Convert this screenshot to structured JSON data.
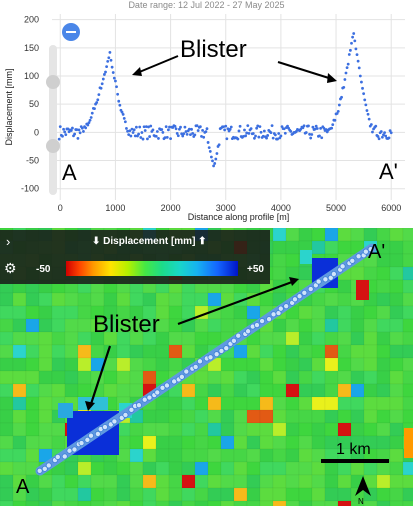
{
  "header": {
    "date_range": "Date range: 12 Jul 2022 - 27 May 2025"
  },
  "chart_data": {
    "type": "scatter",
    "xlabel": "Distance along profile [m]",
    "ylabel": "Displacement [mm]",
    "xlim": [
      -150,
      6250
    ],
    "ylim": [
      -120,
      210
    ],
    "xticks": [
      0,
      1000,
      2000,
      3000,
      4000,
      5000,
      6000
    ],
    "yticks": [
      -100,
      -50,
      0,
      50,
      100,
      150,
      200
    ],
    "grid": true,
    "profile_shape": {
      "baseline": 0,
      "peaks": [
        {
          "x": 900,
          "y": 140
        },
        {
          "x": 5320,
          "y": 180
        }
      ],
      "dip": {
        "x": 2780,
        "y": -62
      }
    },
    "annotations": {
      "blister": "Blister",
      "point_a": "A",
      "point_a_prime": "A'"
    }
  },
  "controls": {
    "zoom_out_icon": "minus-circle-icon",
    "slider_track": "vertical-slider"
  },
  "legend": {
    "expand_icon": "chevron-right-icon",
    "settings_icon": "gear-icon",
    "title": "⬇ Displacement [mm] ⬆",
    "min": "-50",
    "max": "+50"
  },
  "map": {
    "blister": "Blister",
    "point_a": "A",
    "point_a_prime": "A'",
    "scale": "1 km",
    "north": "N"
  }
}
